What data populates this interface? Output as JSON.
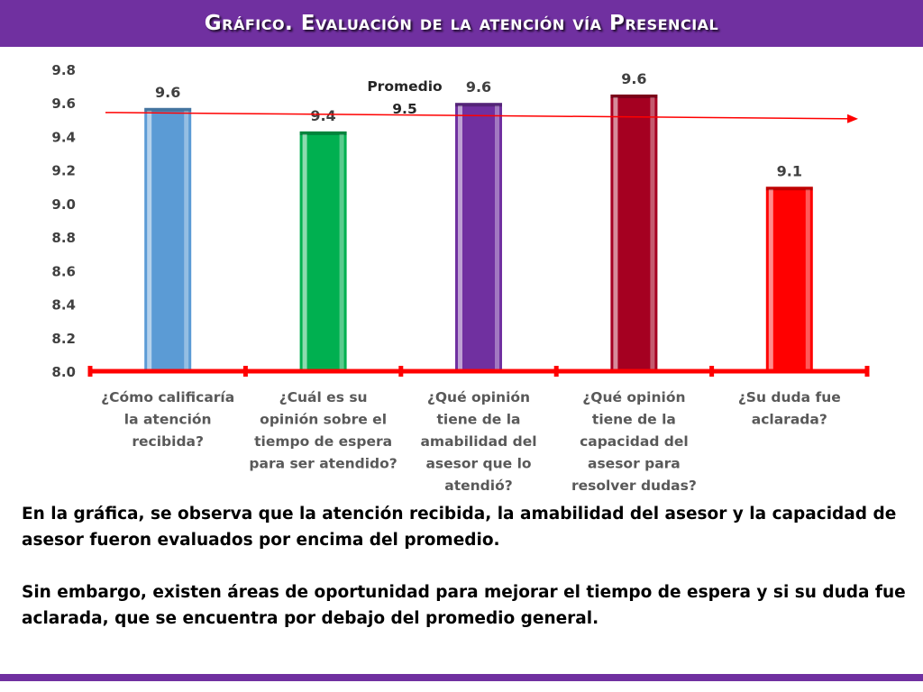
{
  "header": {
    "title": "Gráfico. Evaluación de la atención vía Presencial"
  },
  "colors": {
    "title_bar": "#7030a0",
    "axis_line": "#ff0000",
    "average_line": "#ff0000"
  },
  "chart_data": {
    "type": "bar",
    "title": "",
    "xlabel": "",
    "ylabel": "",
    "ylim": [
      8.0,
      9.8
    ],
    "y_ticks": [
      "8.0",
      "8.2",
      "8.4",
      "8.6",
      "8.8",
      "9.0",
      "9.2",
      "9.4",
      "9.6",
      "9.8"
    ],
    "grid": false,
    "legend": "none",
    "categories": [
      [
        "¿Cómo calificaría",
        "la atención",
        "recibida?"
      ],
      [
        "¿Cuál es su",
        "opinión sobre el",
        "tiempo de espera",
        "para ser atendido?"
      ],
      [
        "¿Qué opinión",
        "tiene de la",
        "amabilidad del",
        "asesor que lo",
        "atendió?"
      ],
      [
        "¿Qué opinión",
        "tiene de la",
        "capacidad del",
        "asesor para",
        "resolver dudas?"
      ],
      [
        "¿Su duda fue",
        "aclarada?"
      ]
    ],
    "values": [
      9.57,
      9.43,
      9.6,
      9.65,
      9.1
    ],
    "data_labels": [
      "9.6",
      "9.4",
      "9.6",
      "9.6",
      "9.1"
    ],
    "bar_colors": [
      "#5b9bd5",
      "#00b050",
      "#7030a0",
      "#a50021",
      "#ff0000"
    ],
    "average": {
      "value": 9.5,
      "label_line1": "Promedio",
      "label_line2": "9.5"
    }
  },
  "description": {
    "paragraph1": "En la gráfica, se observa que la atención recibida, la amabilidad del asesor y la capacidad de asesor fueron evaluados por encima del promedio.",
    "paragraph2": "Sin embargo, existen áreas de oportunidad para mejorar el tiempo de espera y si su duda fue aclarada, que se encuentra por debajo del promedio general."
  }
}
